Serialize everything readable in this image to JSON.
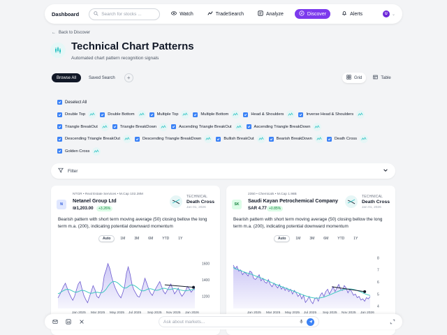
{
  "nav": {
    "brand": "Dashboard",
    "search_placeholder": "Search for stocks ...",
    "items": [
      {
        "label": "Watch",
        "icon": "eye-icon"
      },
      {
        "label": "TradeSearch",
        "icon": "chart-icon"
      },
      {
        "label": "Analyze",
        "icon": "analyze-icon"
      },
      {
        "label": "Discover",
        "icon": "compass-icon",
        "active": true
      },
      {
        "label": "Alerts",
        "icon": "bell-icon"
      }
    ],
    "avatar_initial": "U"
  },
  "header": {
    "back_label": "Back to Discover",
    "title": "Technical Chart Patterns",
    "subtitle": "Automated chart pattern recognition signals"
  },
  "tabs": {
    "browse_all": "Browse All",
    "saved_search": "Saved Search",
    "add": "+"
  },
  "view_toggle": {
    "grid": "Grid",
    "table": "Table"
  },
  "patterns": {
    "deselect_label": "Deselect All",
    "rows": [
      [
        "Double Top",
        "Double Bottom",
        "Multiple Top",
        "Multiple Bottom",
        "Head & Shoulders",
        "Inverse Head & Shoulders"
      ],
      [
        "Triangle BreakOut",
        "Triangle BreakDown",
        "Ascending Triangle BreakOut",
        "Ascending Triangle BreakDown"
      ],
      [
        "Descending Triangle BreakOut",
        "Descending Triangle BreakDown",
        "Bullish BreakOut",
        "Bearish BreakDown",
        "Death Cross"
      ],
      [
        "Golden Cross"
      ]
    ]
  },
  "filter": {
    "label": "Filter"
  },
  "cards": [
    {
      "meta": "NTGR • Real Estate Services • M.Cap 102.28M",
      "name": "Netanel Group Ltd",
      "price": "₪1,203.00",
      "change": "+3.26%",
      "signal_label": "TECHNICAL",
      "signal_name": "Death Cross",
      "signal_date": "Jan 01, 2026",
      "description": "Bearish pattern with short term moving average (50) closing bellow the long term m.a. (200), indicating potential downward momentum",
      "ranges": [
        "Auto",
        "1M",
        "3M",
        "6M",
        "YTD",
        "1Y"
      ],
      "active_range": "Auto",
      "logo_color": "#1d4ed8",
      "logo_text": "N",
      "chart_data": {
        "type": "area",
        "y_ticks": [
          "1600",
          "1400",
          "1200"
        ],
        "x_ticks": [
          "Jan 2025",
          "Mar 2025",
          "May 2025",
          "Jul 2025",
          "Sep 2025",
          "Nov 2025",
          "Jan 2026"
        ],
        "ylim": [
          1050,
          1700
        ],
        "price": [
          1180,
          1220,
          1270,
          1320,
          1360,
          1300,
          1240,
          1190,
          1150,
          1200,
          1280,
          1350,
          1380,
          1290,
          1210,
          1160,
          1120,
          1190,
          1260,
          1330,
          1280,
          1200,
          1180,
          1230,
          1290,
          1450,
          1520,
          1600,
          1540,
          1440,
          1360,
          1300,
          1250,
          1210,
          1180,
          1240,
          1320,
          1480,
          1560,
          1470,
          1350,
          1280,
          1240,
          1200,
          1190,
          1250,
          1330,
          1420,
          1360,
          1290,
          1240,
          1210,
          1260,
          1300,
          1340,
          1380,
          1320,
          1260,
          1230,
          1270,
          1310,
          1350,
          1290,
          1230,
          1260,
          1300,
          1240,
          1200,
          1230,
          1270,
          1320,
          1290,
          1250,
          1280,
          1300
        ],
        "ma_short": [
          1230,
          1240,
          1255,
          1268,
          1280,
          1285,
          1282,
          1274,
          1262,
          1252,
          1250,
          1256,
          1266,
          1272,
          1270,
          1262,
          1250,
          1240,
          1236,
          1240,
          1248,
          1250,
          1246,
          1242,
          1245,
          1260,
          1285,
          1320,
          1350,
          1372,
          1380,
          1378,
          1368,
          1350,
          1328,
          1310,
          1300,
          1302,
          1318,
          1335,
          1340,
          1335,
          1322,
          1304,
          1285,
          1270,
          1265,
          1270,
          1282,
          1290,
          1292,
          1286,
          1278,
          1272,
          1274,
          1282,
          1292,
          1298,
          1296,
          1288,
          1282,
          1284,
          1290,
          1294,
          1290,
          1284,
          1278,
          1272,
          1268,
          1266,
          1270,
          1276,
          1280,
          1282,
          1282
        ],
        "signal_line": [
          [
            0.78,
            1340
          ],
          [
            0.99,
            1310
          ]
        ]
      }
    },
    {
      "meta": "2350 • Chemicals • M.Cap 1.98B",
      "name": "Saudi Kayan Petrochemical Company",
      "price": "SAR 4.77",
      "change": "+0.85%",
      "signal_label": "TECHNICAL",
      "signal_name": "Death Cross",
      "signal_date": "Jan 01, 2026",
      "description": "Bearish pattern with short term moving average (50) closing bellow the long term m.a. (200), indicating potential downward momentum",
      "ranges": [
        "Auto",
        "1M",
        "3M",
        "6M",
        "YTD",
        "1Y"
      ],
      "active_range": "Auto",
      "logo_color": "#15803d",
      "logo_text": "SK",
      "chart_data": {
        "type": "area",
        "y_ticks": [
          "8",
          "7",
          "6",
          "5",
          "4"
        ],
        "x_ticks": [
          "Jan 2025",
          "Mar 2025",
          "May 2025",
          "Jul 2025",
          "Sep 2025",
          "Nov 2025",
          "Jan 2026"
        ],
        "ylim": [
          3.8,
          8.2
        ],
        "price": [
          7.4,
          7.1,
          7.3,
          6.9,
          7.0,
          6.6,
          6.8,
          6.7,
          6.5,
          6.9,
          6.8,
          6.3,
          6.2,
          6.4,
          6.6,
          6.1,
          6.3,
          6.0,
          5.9,
          6.2,
          5.8,
          5.6,
          5.9,
          5.7,
          5.5,
          5.8,
          5.4,
          5.6,
          5.3,
          5.5,
          5.2,
          5.4,
          5.0,
          5.3,
          5.1,
          4.8,
          5.0,
          4.6,
          4.9,
          4.3,
          4.5,
          4.8,
          4.4,
          4.2,
          4.6,
          4.7,
          4.4,
          4.9,
          5.1,
          4.8,
          5.2,
          5.4,
          5.0,
          5.3,
          5.6,
          5.2,
          5.5,
          5.8,
          5.4,
          5.3,
          5.7,
          5.5,
          5.1,
          5.4,
          5.2,
          4.9,
          5.0,
          4.7,
          4.8,
          4.5,
          4.6,
          4.4,
          4.7,
          4.6,
          4.8
        ],
        "ma_short": [
          7.2,
          7.1,
          7.05,
          7.0,
          6.95,
          6.88,
          6.82,
          6.77,
          6.72,
          6.68,
          6.63,
          6.57,
          6.5,
          6.44,
          6.39,
          6.33,
          6.27,
          6.2,
          6.13,
          6.07,
          6.0,
          5.93,
          5.87,
          5.8,
          5.74,
          5.68,
          5.62,
          5.56,
          5.5,
          5.45,
          5.39,
          5.33,
          5.27,
          5.21,
          5.15,
          5.09,
          5.03,
          4.97,
          4.91,
          4.85,
          4.8,
          4.76,
          4.72,
          4.69,
          4.67,
          4.66,
          4.66,
          4.68,
          4.71,
          4.75,
          4.8,
          4.86,
          4.92,
          4.98,
          5.05,
          5.12,
          5.18,
          5.24,
          5.3,
          5.35,
          5.38,
          5.41,
          5.42,
          5.42,
          5.41,
          5.38,
          5.34,
          5.29,
          5.23,
          5.17,
          5.1,
          5.03,
          4.97,
          4.92,
          4.88
        ],
        "signal_line": [
          [
            0.72,
            5.6
          ],
          [
            0.96,
            5.2
          ]
        ]
      }
    }
  ],
  "bottom": {
    "ask_placeholder": "Ask about markets..."
  },
  "colors": {
    "accent": "#7c3aed",
    "checkbox": "#3b82f6",
    "teal": "#2ec4c4",
    "area_fill": "#c7c2f5",
    "price_line": "#6d5bd0",
    "ma_line": "#3cc8c0"
  }
}
